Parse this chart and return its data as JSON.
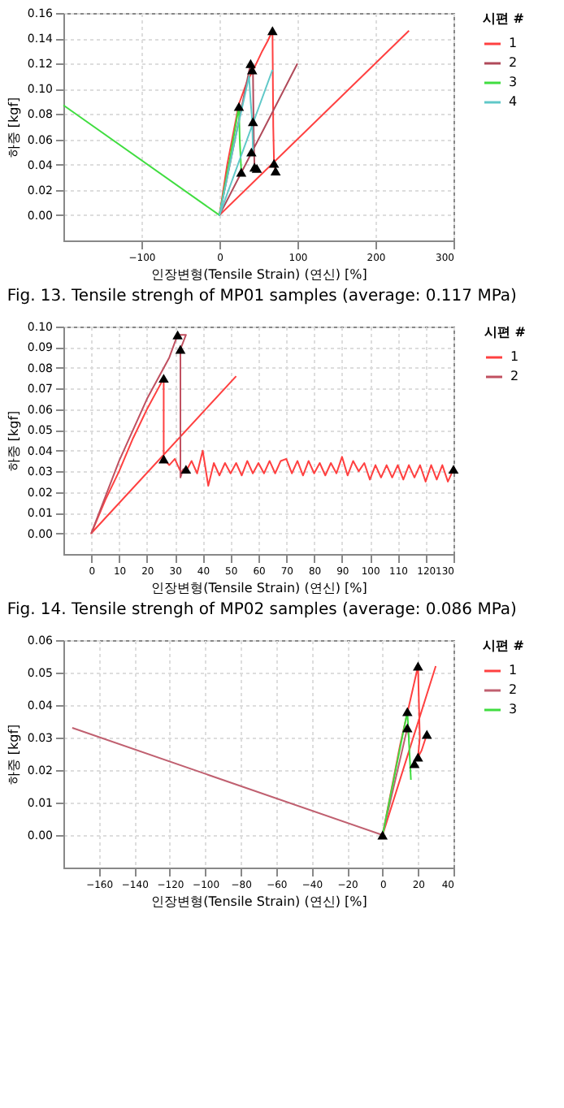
{
  "chart_data": [
    {
      "type": "line",
      "xlabel": "인장변형(Tensile Strain) (연신) [%]",
      "ylabel": "하중 [kgf]",
      "legend_title": "시편 #",
      "legend": "right",
      "grid": true,
      "xlim": [
        -200,
        300
      ],
      "xticks": [
        -100,
        0,
        100,
        200,
        300
      ],
      "ylim": [
        -0.02,
        0.16
      ],
      "yticks": [
        {
          "value": 0,
          "label": "0.00"
        },
        {
          "value": 0.02,
          "label": "0.02"
        },
        {
          "value": 0.04,
          "label": "0.04"
        },
        {
          "value": 0.06,
          "label": "0.06"
        },
        {
          "value": 0.08,
          "label": "0.08"
        },
        {
          "value": 0.1,
          "label": "0.10"
        },
        {
          "value": 0.12,
          "label": "0.12"
        },
        {
          "value": 0.14,
          "label": "0.14"
        },
        {
          "value": 0.16,
          "label": "0.16"
        }
      ],
      "annotations": [
        "Fig. 13. Tensile strengh of MP01 samples (average: 0.117 MPa)"
      ],
      "series": [
        {
          "name": "1",
          "color": "#ff4040",
          "x": [
            243,
            0,
            10,
            25,
            35,
            45,
            55,
            62,
            68,
            69,
            70,
            72
          ],
          "values": [
            0.146,
            0,
            0.04,
            0.088,
            0.105,
            0.117,
            0.13,
            0.138,
            0.146,
            0.07,
            0.041,
            0.035
          ]
        },
        {
          "name": "2",
          "color": "#b04a5a",
          "x": [
            100,
            0,
            20,
            35,
            40,
            43,
            44,
            45,
            48
          ],
          "values": [
            0.12,
            0,
            0.06,
            0.105,
            0.12,
            0.113,
            0.06,
            0.038,
            0.037
          ]
        },
        {
          "name": "3",
          "color": "#40dd40",
          "x": [
            -200,
            0,
            15,
            25,
            26,
            28,
            30
          ],
          "values": [
            0.087,
            0,
            0.05,
            0.086,
            0.06,
            0.035,
            0.033
          ]
        },
        {
          "name": "4",
          "color": "#60c8c8",
          "x": [
            68,
            0,
            20,
            38,
            40,
            42,
            43
          ],
          "values": [
            0.115,
            0,
            0.06,
            0.11,
            0.09,
            0.075,
            0.05
          ]
        },
        {
          "type": "scatter",
          "marker": "triangle",
          "color": "#000000",
          "x": [
            25,
            40,
            42,
            43,
            41,
            45,
            48,
            28,
            68,
            70,
            72
          ],
          "values": [
            0.086,
            0.12,
            0.115,
            0.074,
            0.05,
            0.038,
            0.037,
            0.034,
            0.146,
            0.041,
            0.035
          ]
        }
      ]
    },
    {
      "type": "line",
      "xlabel": "인장변형(Tensile Strain) (연신) [%]",
      "ylabel": "하중 [kgf]",
      "legend_title": "시편 #",
      "legend": "right",
      "grid": true,
      "xlim": [
        -10,
        130
      ],
      "xticks": [
        0,
        10,
        20,
        30,
        40,
        50,
        60,
        70,
        80,
        90,
        100,
        110,
        120,
        130
      ],
      "ylim": [
        -0.01,
        0.1
      ],
      "yticks": [
        {
          "value": 0,
          "label": "0.00"
        },
        {
          "value": 0.01,
          "label": "0.01"
        },
        {
          "value": 0.02,
          "label": "0.02"
        },
        {
          "value": 0.03,
          "label": "0.03"
        },
        {
          "value": 0.04,
          "label": "0.04"
        },
        {
          "value": 0.05,
          "label": "0.05"
        },
        {
          "value": 0.06,
          "label": "0.06"
        },
        {
          "value": 0.07,
          "label": "0.07"
        },
        {
          "value": 0.08,
          "label": "0.08"
        },
        {
          "value": 0.09,
          "label": "0.09"
        },
        {
          "value": 0.1,
          "label": "0.10"
        }
      ],
      "annotations": [
        "Fig. 14. Tensile strengh of MP02 samples (average: 0.086 MPa)"
      ],
      "series": [
        {
          "name": "1",
          "color": "#ff4040",
          "x": [
            52,
            0,
            5,
            10,
            15,
            20,
            24,
            26,
            26,
            28,
            30,
            32,
            34,
            36,
            38,
            40,
            42,
            44,
            46,
            48,
            50,
            52,
            54,
            56,
            58,
            60,
            62,
            64,
            66,
            68,
            70,
            72,
            74,
            76,
            78,
            80,
            82,
            84,
            86,
            88,
            90,
            92,
            94,
            96,
            98,
            100,
            102,
            104,
            106,
            108,
            110,
            112,
            114,
            116,
            118,
            120,
            122,
            124,
            126,
            128,
            130
          ],
          "values": [
            0.076,
            0,
            0.016,
            0.03,
            0.046,
            0.06,
            0.07,
            0.075,
            0.036,
            0.033,
            0.036,
            0.03,
            0.03,
            0.035,
            0.029,
            0.04,
            0.023,
            0.034,
            0.028,
            0.034,
            0.029,
            0.034,
            0.028,
            0.035,
            0.029,
            0.034,
            0.029,
            0.035,
            0.029,
            0.035,
            0.036,
            0.029,
            0.035,
            0.028,
            0.035,
            0.029,
            0.034,
            0.028,
            0.034,
            0.029,
            0.037,
            0.028,
            0.035,
            0.03,
            0.034,
            0.026,
            0.033,
            0.027,
            0.033,
            0.027,
            0.033,
            0.026,
            0.033,
            0.027,
            0.033,
            0.025,
            0.033,
            0.026,
            0.033,
            0.025,
            0.031
          ]
        },
        {
          "name": "2",
          "color": "#c05060",
          "x": [
            0,
            10,
            20,
            28,
            31,
            34,
            32,
            32,
            33,
            34
          ],
          "values": [
            0,
            0.035,
            0.065,
            0.085,
            0.096,
            0.096,
            0.089,
            0.027,
            0.031,
            0.03
          ]
        },
        {
          "type": "scatter",
          "marker": "triangle",
          "color": "#000000",
          "x": [
            31,
            32,
            26,
            26,
            34,
            130
          ],
          "values": [
            0.096,
            0.089,
            0.075,
            0.036,
            0.031,
            0.031
          ]
        }
      ]
    },
    {
      "type": "line",
      "xlabel": "인장변형(Tensile Strain) (연신) [%]",
      "ylabel": "하중 [kgf]",
      "legend_title": "시편 #",
      "legend": "right",
      "grid": true,
      "xlim": [
        -180,
        40
      ],
      "xticks": [
        -160,
        -140,
        -120,
        -100,
        -80,
        -60,
        -40,
        -20,
        0,
        20,
        40
      ],
      "ylim": [
        -0.01,
        0.06
      ],
      "yticks": [
        {
          "value": 0,
          "label": "0.00"
        },
        {
          "value": 0.01,
          "label": "0.01"
        },
        {
          "value": 0.02,
          "label": "0.02"
        },
        {
          "value": 0.03,
          "label": "0.03"
        },
        {
          "value": 0.04,
          "label": "0.04"
        },
        {
          "value": 0.05,
          "label": "0.05"
        },
        {
          "value": 0.06,
          "label": "0.06"
        }
      ],
      "series": [
        {
          "name": "1",
          "color": "#ff4040",
          "x": [
            30,
            0,
            10,
            20,
            21,
            20,
            22,
            25
          ],
          "values": [
            0.052,
            0,
            0.028,
            0.052,
            0.03,
            0.024,
            0.026,
            0.031
          ]
        },
        {
          "name": "2",
          "color": "#c06070",
          "x": [
            -175,
            0,
            14,
            15
          ],
          "values": [
            0.033,
            0,
            0.033,
            0.03
          ]
        },
        {
          "name": "3",
          "color": "#40dd40",
          "x": [
            0,
            14,
            16
          ],
          "values": [
            0,
            0.038,
            0.017
          ]
        },
        {
          "type": "scatter",
          "marker": "triangle",
          "color": "#000000",
          "x": [
            0,
            14,
            14,
            20,
            20,
            18,
            25
          ],
          "values": [
            0,
            0.038,
            0.033,
            0.052,
            0.024,
            0.022,
            0.031
          ]
        }
      ]
    }
  ]
}
